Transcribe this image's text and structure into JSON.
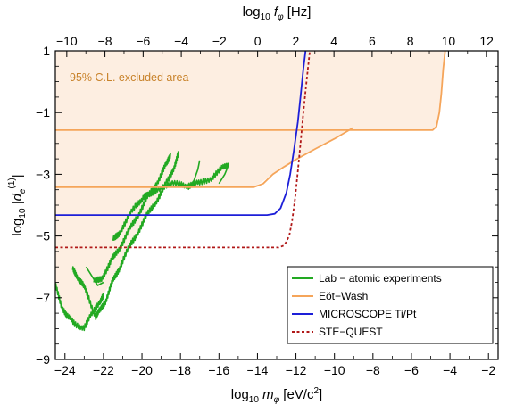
{
  "chart_data": {
    "type": "line",
    "title": "",
    "xlabel": {
      "prefix": "log",
      "sub": "10",
      "var": "m",
      "varsub": "φ",
      "unit": "[eV/c",
      "unit_sup": "2",
      "unit_end": "]"
    },
    "ylabel": {
      "prefix": "log",
      "sub": "10",
      "var": "|d",
      "varsub": "e",
      "varsup": "(1)",
      "end": "|"
    },
    "x2label": {
      "prefix": "log",
      "sub": "10",
      "var": "f",
      "varsub": "φ",
      "unit": "[Hz]"
    },
    "xlim": [
      -24.5,
      -1.5
    ],
    "ylim": [
      -9,
      1
    ],
    "x2lim": [
      -10.6,
      12.6
    ],
    "xticks": [
      "-24",
      "-22",
      "-20",
      "-18",
      "-16",
      "-14",
      "-12",
      "-10",
      "-8",
      "-6",
      "-4",
      "-2"
    ],
    "xtick_values": [
      -24,
      -22,
      -20,
      -18,
      -16,
      -14,
      -12,
      -10,
      -8,
      -6,
      -4,
      -2
    ],
    "yticks": [
      "-9",
      "-7",
      "-5",
      "-3",
      "-1",
      "1"
    ],
    "ytick_values": [
      -9,
      -7,
      -5,
      -3,
      -1,
      1
    ],
    "x2ticks": [
      "-10",
      "-8",
      "-6",
      "-4",
      "-2",
      "0",
      "2",
      "4",
      "6",
      "8",
      "10",
      "12"
    ],
    "x2tick_values": [
      -10,
      -8,
      -6,
      -4,
      -2,
      0,
      2,
      4,
      6,
      8,
      10,
      12
    ],
    "grid": false,
    "legend_position": "bottom-right",
    "annotation": {
      "text": "95% C.L. excluded area",
      "color": "#c8822a"
    },
    "shade_color": "#fdeee1",
    "series": [
      {
        "name": "Lab − atomic experiments",
        "color": "#22a922",
        "segments": [
          [
            [
              -24.5,
              -6.6
            ],
            [
              -24.2,
              -7.2
            ],
            [
              -23.9,
              -7.6
            ],
            [
              -23.5,
              -7.85
            ],
            [
              -23.0,
              -7.95
            ],
            [
              -22.6,
              -7.55
            ],
            [
              -22.2,
              -7.1
            ],
            [
              -22.0,
              -6.95
            ]
          ],
          [
            [
              -23.6,
              -6.1
            ],
            [
              -23.4,
              -6.25
            ],
            [
              -23.1,
              -6.55
            ],
            [
              -22.8,
              -6.95
            ],
            [
              -22.4,
              -7.6
            ],
            [
              -22.2,
              -7.45
            ],
            [
              -21.9,
              -7.1
            ],
            [
              -21.6,
              -6.6
            ],
            [
              -21.3,
              -6.2
            ],
            [
              -21.0,
              -5.8
            ],
            [
              -20.6,
              -5.3
            ],
            [
              -20.2,
              -4.85
            ],
            [
              -19.8,
              -4.4
            ],
            [
              -19.4,
              -4.0
            ],
            [
              -19.0,
              -3.6
            ],
            [
              -18.6,
              -3.15
            ],
            [
              -18.3,
              -2.7
            ],
            [
              -18.1,
              -2.35
            ]
          ],
          [
            [
              -22.9,
              -6.0
            ],
            [
              -22.6,
              -6.3
            ],
            [
              -22.3,
              -6.6
            ],
            [
              -22.0,
              -6.5
            ]
          ],
          [
            [
              -22.5,
              -6.5
            ],
            [
              -22.1,
              -6.35
            ],
            [
              -21.7,
              -5.95
            ],
            [
              -21.4,
              -5.6
            ],
            [
              -21.0,
              -5.2
            ],
            [
              -20.6,
              -4.75
            ],
            [
              -20.2,
              -4.3
            ],
            [
              -19.8,
              -3.85
            ],
            [
              -19.4,
              -3.45
            ],
            [
              -19.0,
              -3.0
            ],
            [
              -18.7,
              -2.65
            ],
            [
              -18.5,
              -2.3
            ]
          ],
          [
            [
              -21.5,
              -5.15
            ],
            [
              -21.2,
              -4.9
            ],
            [
              -20.8,
              -4.5
            ],
            [
              -20.3,
              -4.0
            ],
            [
              -19.9,
              -3.7
            ],
            [
              -19.6,
              -3.7
            ],
            [
              -19.2,
              -3.45
            ],
            [
              -18.6,
              -3.35
            ],
            [
              -18.0,
              -3.3
            ],
            [
              -17.5,
              -3.35
            ],
            [
              -17.0,
              -3.3
            ],
            [
              -16.4,
              -3.1
            ],
            [
              -15.9,
              -2.85
            ],
            [
              -15.5,
              -2.7
            ]
          ],
          [
            [
              -17.6,
              -3.5
            ],
            [
              -17.3,
              -3.2
            ],
            [
              -17.1,
              -2.85
            ],
            [
              -17.0,
              -2.55
            ]
          ],
          [
            [
              -16.0,
              -3.3
            ],
            [
              -15.7,
              -3.0
            ],
            [
              -15.5,
              -2.7
            ]
          ]
        ],
        "noisy": true
      },
      {
        "name": "Eöt−Wash",
        "color": "#f5a55a",
        "segments": [
          [
            [
              -24.5,
              -1.57
            ],
            [
              -4.9,
              -1.57
            ],
            [
              -4.7,
              -1.45
            ],
            [
              -4.55,
              -1.0
            ],
            [
              -4.45,
              -0.4
            ],
            [
              -4.35,
              0.4
            ],
            [
              -4.25,
              1.0
            ]
          ],
          [
            [
              -24.5,
              -3.42
            ],
            [
              -14.2,
              -3.42
            ],
            [
              -13.7,
              -3.3
            ],
            [
              -13.2,
              -3.0
            ],
            [
              -12.6,
              -2.75
            ],
            [
              -12.0,
              -2.52
            ],
            [
              -11.0,
              -2.18
            ],
            [
              -10.0,
              -1.85
            ],
            [
              -9.05,
              -1.5
            ]
          ]
        ]
      },
      {
        "name": "MICROSCOPE Ti/Pt",
        "color": "#1d1fd8",
        "segments": [
          [
            [
              -24.5,
              -4.32
            ],
            [
              -13.5,
              -4.32
            ],
            [
              -13.1,
              -4.28
            ],
            [
              -12.8,
              -4.1
            ],
            [
              -12.5,
              -3.6
            ],
            [
              -12.3,
              -3.0
            ],
            [
              -12.1,
              -2.2
            ],
            [
              -11.9,
              -1.3
            ],
            [
              -11.75,
              -0.4
            ],
            [
              -11.62,
              0.4
            ],
            [
              -11.5,
              1.0
            ]
          ]
        ]
      },
      {
        "name": "STE−QUEST",
        "color": "#b01818",
        "dashed": true,
        "segments": [
          [
            [
              -24.5,
              -5.37
            ],
            [
              -12.9,
              -5.37
            ],
            [
              -12.6,
              -5.3
            ],
            [
              -12.35,
              -5.0
            ],
            [
              -12.2,
              -4.5
            ],
            [
              -12.05,
              -3.8
            ],
            [
              -11.9,
              -2.9
            ],
            [
              -11.75,
              -1.9
            ],
            [
              -11.6,
              -0.9
            ],
            [
              -11.45,
              0.0
            ],
            [
              -11.35,
              0.6
            ],
            [
              -11.28,
              1.0
            ]
          ]
        ]
      }
    ]
  }
}
